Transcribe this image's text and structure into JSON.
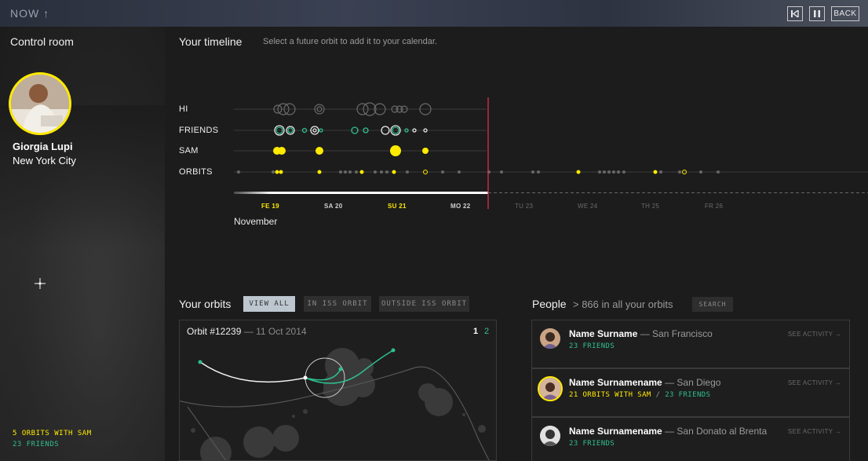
{
  "topbar": {
    "now_label": "NOW ↑",
    "skip_icon": "skip-back-icon",
    "pause_icon": "pause-icon",
    "back_label": "BACK"
  },
  "control_room": {
    "title": "Control room",
    "user_name": "Giorgia Lupi",
    "user_city": "New York City",
    "stat_orbits": "5 ORBITS WITH SAM",
    "stat_friends": "23 FRIENDS"
  },
  "timeline": {
    "title": "Your timeline",
    "hint": "Select a future orbit to add it to your calendar.",
    "rows": [
      "HI",
      "FRIENDS",
      "SAM",
      "ORBITS"
    ],
    "days": [
      {
        "label": "FE 19",
        "past": true,
        "highlight": true
      },
      {
        "label": "SA 20",
        "past": true,
        "highlight": false
      },
      {
        "label": "SU 21",
        "past": true,
        "highlight": true
      },
      {
        "label": "MO 22",
        "past": true,
        "highlight": false
      },
      {
        "label": "TU 23",
        "past": false,
        "highlight": false
      },
      {
        "label": "WE 24",
        "past": false,
        "highlight": false
      },
      {
        "label": "TH 25",
        "past": false,
        "highlight": false
      },
      {
        "label": "FR 26",
        "past": false,
        "highlight": false
      }
    ],
    "month": "November",
    "colors": {
      "yellow": "#ffea00",
      "green": "#2fbf8f",
      "now_line": "#e0304a"
    }
  },
  "orbits": {
    "title": "Your orbits",
    "tabs": [
      "VIEW ALL",
      "IN ISS ORBIT",
      "OUTSIDE ISS ORBIT"
    ],
    "active_tab": "VIEW ALL",
    "card": {
      "orbit_id": "Orbit #12239",
      "date": "— 11 Oct 2014",
      "page_current": "1",
      "page_next": "2"
    }
  },
  "people": {
    "title": "People",
    "subtitle": "> 866 in all your orbits",
    "search_label": "SEARCH",
    "items": [
      {
        "name": "Name Surname",
        "location": "— San Francisco",
        "orbits_with_sam": "",
        "sep": "",
        "friends": "23 FRIENDS",
        "activity": "SEE ACTIVITY →",
        "highlight": false
      },
      {
        "name": "Name Surnamename",
        "location": "— San Diego",
        "orbits_with_sam": "21 ORBITS WITH SAM",
        "sep": "/",
        "friends": "23 FRIENDS",
        "activity": "SEE ACTIVITY →",
        "highlight": true
      },
      {
        "name": "Name Surnamename",
        "location": "— San Donato al Brenta",
        "orbits_with_sam": "",
        "sep": "",
        "friends": "23 FRIENDS",
        "activity": "SEE ACTIVITY →",
        "highlight": false
      }
    ]
  }
}
